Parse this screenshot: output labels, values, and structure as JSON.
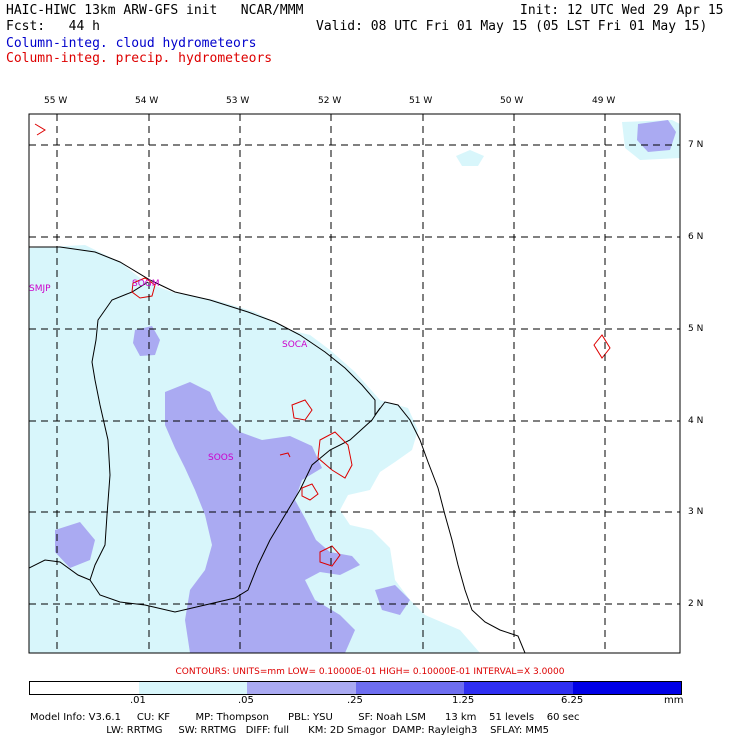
{
  "header": {
    "title": "HAIC-HIWC 13km ARW-GFS init   NCAR/MMM",
    "init": "Init: 12 UTC Wed 29 Apr 15",
    "fcst": "Fcst:   44 h",
    "valid": "Valid: 08 UTC Fri 01 May 15 (05 LST Fri 01 May 15)",
    "legend_cloud": "Column-integ. cloud hydrometeors",
    "legend_precip": "Column-integ. precip. hydrometeors"
  },
  "map": {
    "lon_labels": [
      "55 W",
      "54 W",
      "53 W",
      "52 W",
      "51 W",
      "50 W",
      "49 W"
    ],
    "lat_labels": [
      "7 N",
      "6 N",
      "5 N",
      "4 N",
      "3 N",
      "2 N"
    ],
    "stations": [
      "SMJP",
      "SOGM",
      "SOCA",
      "SOOS"
    ]
  },
  "contours_text": "CONTOURS:  UNITS=mm   LOW= 0.10000E-01   HIGH= 0.10000E-01   INTERVAL=X  3.0000",
  "colorbar": {
    "labels": [
      ".01",
      ".05",
      ".25",
      "1.25",
      "6.25",
      "mm"
    ],
    "colors": [
      "#ffffff",
      "#d8f6fb",
      "#aaaaf2",
      "#6e6ef0",
      "#2f2ff2",
      "#0000e6"
    ]
  },
  "model_info": {
    "line1": "Model Info: V3.6.1     CU: KF        MP: Thompson      PBL: YSU        SF: Noah LSM      13 km    51 levels    60 sec",
    "line2": "                        LW: RRTMG     SW: RRTMG   DIFF: full      KM: 2D Smagor  DAMP: Rayleigh3    SFLAY: MM5"
  }
}
